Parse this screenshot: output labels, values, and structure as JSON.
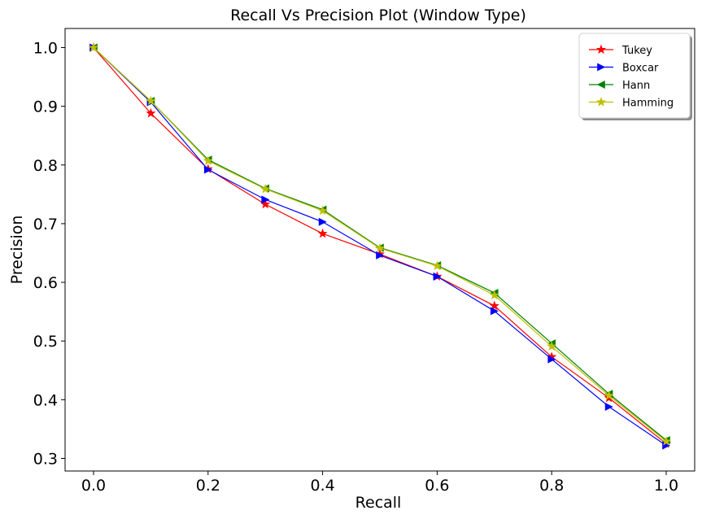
{
  "chart_data": {
    "type": "line",
    "title": "Recall Vs Precision Plot (Window Type)",
    "xlabel": "Recall",
    "ylabel": "Precision",
    "xlim": [
      -0.05,
      1.05
    ],
    "ylim": [
      0.29,
      1.035
    ],
    "x_ticks": [
      "0.0",
      "0.2",
      "0.4",
      "0.6",
      "0.8",
      "1.0"
    ],
    "y_ticks": [
      "0.3",
      "0.4",
      "0.5",
      "0.6",
      "0.7",
      "0.8",
      "0.9",
      "1.0"
    ],
    "grid": false,
    "legend_position": "top-right",
    "x": [
      0.0,
      0.1,
      0.2,
      0.3,
      0.4,
      0.5,
      0.6,
      0.7,
      0.8,
      0.9,
      1.0
    ],
    "series": [
      {
        "name": "Tukey",
        "color": "#ff0000",
        "marker": "star",
        "values": [
          1.0,
          0.888,
          0.793,
          0.733,
          0.683,
          0.648,
          0.61,
          0.56,
          0.473,
          0.403,
          0.325
        ]
      },
      {
        "name": "Boxcar",
        "color": "#0000ff",
        "marker": "triangle-right",
        "values": [
          1.0,
          0.907,
          0.792,
          0.741,
          0.703,
          0.646,
          0.61,
          0.551,
          0.469,
          0.388,
          0.322
        ]
      },
      {
        "name": "Hann",
        "color": "#008000",
        "marker": "triangle-left",
        "values": [
          1.0,
          0.909,
          0.809,
          0.76,
          0.724,
          0.659,
          0.629,
          0.582,
          0.496,
          0.41,
          0.331
        ]
      },
      {
        "name": "Hamming",
        "color": "#bfbf00",
        "marker": "star",
        "values": [
          1.0,
          0.909,
          0.807,
          0.759,
          0.722,
          0.658,
          0.628,
          0.578,
          0.491,
          0.407,
          0.329
        ]
      }
    ]
  }
}
